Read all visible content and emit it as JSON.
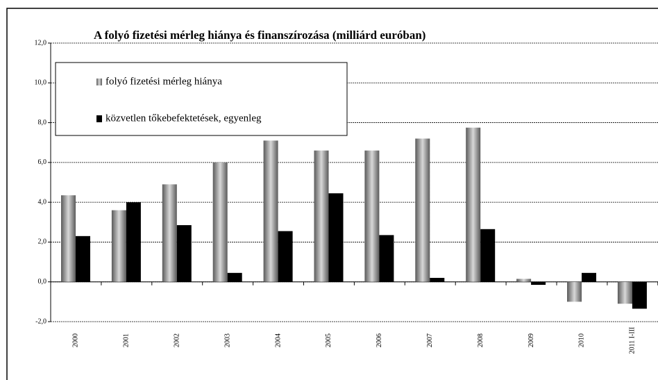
{
  "chart_data": {
    "type": "bar",
    "title": "A folyó fizetési mérleg hiánya és finanszírozása (milliárd euróban)",
    "categories": [
      "2000",
      "2001",
      "2002",
      "2003",
      "2004",
      "2005",
      "2006",
      "2007",
      "2008",
      "2009",
      "2010",
      "2011 I-III"
    ],
    "series": [
      {
        "name": "folyó fizetési mérleg hiánya",
        "color": "#808080",
        "values": [
          4.35,
          3.6,
          4.9,
          6.0,
          7.1,
          6.6,
          6.6,
          7.2,
          7.75,
          0.15,
          -1.0,
          -1.1
        ]
      },
      {
        "name": "közvetlen tőkebefektetések, egyenleg",
        "color": "#000000",
        "values": [
          2.3,
          4.0,
          2.85,
          0.45,
          2.55,
          4.45,
          2.35,
          0.2,
          2.65,
          -0.15,
          0.45,
          -1.35
        ]
      }
    ],
    "ylim": [
      -2,
      12
    ],
    "yticks": [
      {
        "value": -2,
        "label": "-2,0"
      },
      {
        "value": 0,
        "label": "0,0"
      },
      {
        "value": 2,
        "label": "2,0"
      },
      {
        "value": 4,
        "label": "4,0"
      },
      {
        "value": 6,
        "label": "6,0"
      },
      {
        "value": 8,
        "label": "8,0"
      },
      {
        "value": 10,
        "label": "10,0"
      },
      {
        "value": 12,
        "label": "12,0"
      }
    ],
    "grid": true
  }
}
